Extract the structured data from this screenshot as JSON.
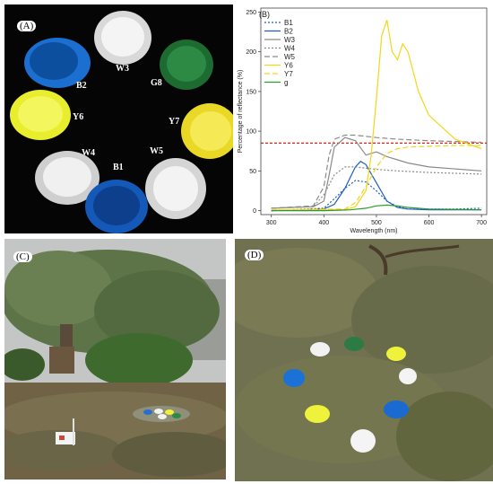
{
  "panels": {
    "a": {
      "tag": "(A)",
      "bowls": [
        {
          "label": "W3",
          "color": "#f2f2f2"
        },
        {
          "label": "B2",
          "color": "#1565c0"
        },
        {
          "label": "G8",
          "color": "#1b7d3a"
        },
        {
          "label": "Y6",
          "color": "#eef23a"
        },
        {
          "label": "Y7",
          "color": "#f0e82a"
        },
        {
          "label": "W4",
          "color": "#ececec"
        },
        {
          "label": "B1",
          "color": "#1457b8"
        },
        {
          "label": "W5",
          "color": "#efefef"
        }
      ]
    },
    "b": {
      "tag": "(B)"
    },
    "c": {
      "tag": "(C)"
    },
    "d": {
      "tag": "(D)"
    }
  },
  "chart_data": {
    "type": "line",
    "xlabel": "Wavelength (nm)",
    "ylabel": "Percentage of reflectance (%)",
    "xlim": [
      280,
      710
    ],
    "ylim": [
      -5,
      255
    ],
    "xticks": [
      300,
      400,
      500,
      600,
      700
    ],
    "yticks": [
      0,
      50,
      100,
      150,
      200,
      250
    ],
    "threshold": 85,
    "threshold_color": "#e0201b",
    "legend_position": "top-left",
    "series": [
      {
        "name": "B1",
        "color": "#1f5fbf",
        "dash": "2,2",
        "x": [
          300,
          400,
          420,
          440,
          460,
          480,
          500,
          520,
          540,
          560,
          600,
          650,
          700
        ],
        "y": [
          0,
          3,
          15,
          28,
          38,
          36,
          25,
          12,
          5,
          2,
          2,
          2,
          3
        ]
      },
      {
        "name": "B2",
        "color": "#1f5fbf",
        "dash": "",
        "x": [
          300,
          400,
          420,
          440,
          460,
          470,
          480,
          500,
          520,
          540,
          560,
          600,
          700
        ],
        "y": [
          0,
          2,
          8,
          28,
          55,
          62,
          58,
          35,
          12,
          4,
          2,
          1,
          1
        ]
      },
      {
        "name": "W3",
        "color": "#8a8a8a",
        "dash": "",
        "x": [
          300,
          380,
          400,
          410,
          420,
          440,
          460,
          480,
          500,
          520,
          560,
          600,
          700
        ],
        "y": [
          3,
          5,
          12,
          45,
          80,
          92,
          88,
          70,
          74,
          68,
          60,
          55,
          50
        ]
      },
      {
        "name": "W4",
        "color": "#8a8a8a",
        "dash": "2,2",
        "x": [
          300,
          380,
          400,
          420,
          440,
          460,
          500,
          540,
          600,
          650,
          700
        ],
        "y": [
          3,
          5,
          20,
          45,
          55,
          55,
          52,
          50,
          48,
          47,
          46
        ]
      },
      {
        "name": "W5",
        "color": "#8a8a8a",
        "dash": "6,3",
        "x": [
          300,
          380,
          400,
          410,
          420,
          440,
          460,
          500,
          540,
          600,
          650,
          700
        ],
        "y": [
          3,
          6,
          30,
          70,
          90,
          95,
          95,
          92,
          90,
          88,
          87,
          86
        ]
      },
      {
        "name": "Y6",
        "color": "#f2d61b",
        "dash": "",
        "x": [
          300,
          440,
          460,
          480,
          490,
          500,
          510,
          520,
          530,
          540,
          550,
          560,
          580,
          600,
          650,
          700
        ],
        "y": [
          1,
          1,
          5,
          25,
          70,
          140,
          220,
          240,
          200,
          190,
          210,
          200,
          150,
          120,
          90,
          78
        ]
      },
      {
        "name": "Y7",
        "color": "#f2d61b",
        "dash": "6,3",
        "x": [
          300,
          440,
          460,
          480,
          500,
          520,
          540,
          560,
          600,
          650,
          700
        ],
        "y": [
          1,
          2,
          10,
          30,
          55,
          72,
          78,
          80,
          81,
          82,
          82
        ]
      },
      {
        "name": "g",
        "color": "#2e9a2e",
        "dash": "",
        "x": [
          300,
          400,
          450,
          480,
          500,
          520,
          540,
          560,
          600,
          700
        ],
        "y": [
          0,
          0,
          1,
          3,
          6,
          7,
          6,
          4,
          2,
          1
        ]
      }
    ]
  }
}
